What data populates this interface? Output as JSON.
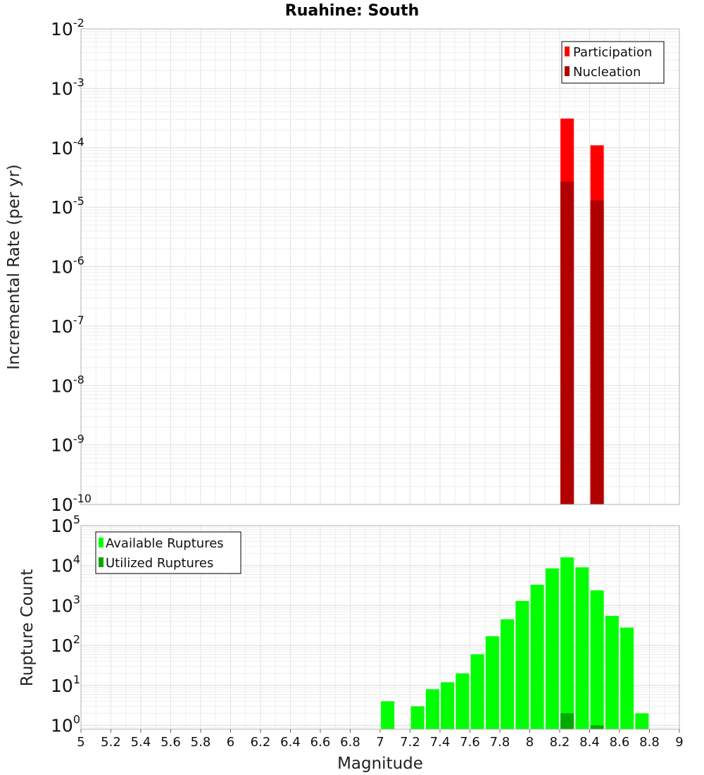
{
  "chart_data": [
    {
      "type": "bar",
      "title": "Ruahine: South",
      "xlabel": "",
      "ylabel": "Incremental Rate (per yr)",
      "y_scale": "log",
      "ylim": [
        1e-10,
        0.01
      ],
      "xlim": [
        5,
        9
      ],
      "grid": true,
      "legend_placement": "top-right",
      "series": [
        {
          "name": "Participation",
          "color": "#ff0000",
          "x": [
            8.25,
            8.45
          ],
          "values": [
            0.00031,
            0.00011
          ]
        },
        {
          "name": "Nucleation",
          "color": "#b00000",
          "x": [
            8.25,
            8.45
          ],
          "values": [
            2.7e-05,
            1.3e-05
          ]
        }
      ]
    },
    {
      "type": "bar",
      "xlabel": "Magnitude",
      "ylabel": "Rupture Count",
      "y_scale": "log",
      "ylim": [
        0.8,
        100000
      ],
      "xlim": [
        5,
        9
      ],
      "x_ticks": [
        "5",
        "5.2",
        "5.4",
        "5.6",
        "5.8",
        "6",
        "6.2",
        "6.4",
        "6.6",
        "6.8",
        "7",
        "7.2",
        "7.4",
        "7.6",
        "7.8",
        "8",
        "8.2",
        "8.4",
        "8.6",
        "8.8",
        "9"
      ],
      "grid": true,
      "legend_placement": "top-left",
      "series": [
        {
          "name": "Available Ruptures",
          "color": "#00ff00",
          "x": [
            7.05,
            7.25,
            7.35,
            7.45,
            7.55,
            7.65,
            7.75,
            7.85,
            7.95,
            8.05,
            8.15,
            8.25,
            8.35,
            8.45,
            8.55,
            8.65,
            8.75
          ],
          "values": [
            4,
            3,
            8,
            12,
            20,
            60,
            170,
            450,
            1300,
            3300,
            8500,
            16000,
            9000,
            2400,
            550,
            280,
            2
          ]
        },
        {
          "name": "Utilized Ruptures",
          "color": "#00aa00",
          "x": [
            8.25,
            8.45
          ],
          "values": [
            2,
            1
          ]
        }
      ]
    }
  ]
}
